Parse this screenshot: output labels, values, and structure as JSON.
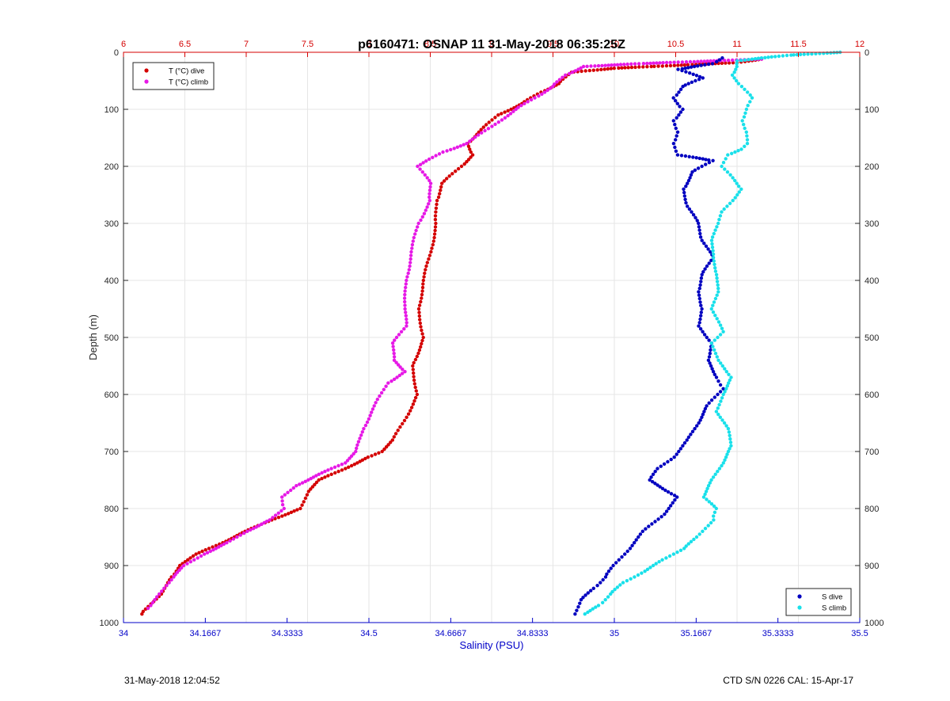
{
  "colors": {
    "temp_axis": "#d40000",
    "sal_axis": "#0000c8",
    "t_dive": "#d40000",
    "t_climb": "#e619e6",
    "s_dive": "#0000c0",
    "s_climb": "#19e0ea",
    "grid": "#e6e6e6"
  },
  "footer": {
    "left": "31-May-2018 12:04:52",
    "right": "CTD S/N 0226  CAL: 15-Apr-17"
  },
  "chart_data": {
    "type": "scatter",
    "title": "p6160471: OSNAP 11 31-May-2018 06:35:25Z",
    "ylabel": "Depth (m)",
    "xlabel_bottom": "Salinity (PSU)",
    "xlabel_top": "",
    "grid": true,
    "y_reversed": true,
    "ylim": [
      0,
      1000
    ],
    "y_ticks": [
      "0",
      "100",
      "200",
      "300",
      "400",
      "500",
      "600",
      "700",
      "800",
      "900",
      "1000"
    ],
    "temp_axis": {
      "xlim": [
        6,
        12
      ],
      "ticks": [
        "6",
        "6.5",
        "7",
        "7.5",
        "8",
        "8.5",
        "9",
        "9.5",
        "10",
        "10.5",
        "11",
        "11.5",
        "12"
      ]
    },
    "salinity_axis": {
      "xlim": [
        34,
        35.5
      ],
      "ticks": [
        "34",
        "34.1667",
        "34.3333",
        "34.5",
        "34.6667",
        "34.8333",
        "35",
        "35.1667",
        "35.3333",
        "35.5"
      ]
    },
    "legend_top_left": [
      {
        "name": "T (°C) dive",
        "color_key": "t_dive"
      },
      {
        "name": "T (°C) climb",
        "color_key": "t_climb"
      }
    ],
    "legend_bottom_right": [
      {
        "name": "S dive",
        "color_key": "s_dive"
      },
      {
        "name": "S climb",
        "color_key": "s_climb"
      }
    ],
    "series": [
      {
        "name": "T (°C) dive",
        "axis": "temp",
        "color_key": "t_dive",
        "points": [
          [
            11.2,
            12
          ],
          [
            11.0,
            18
          ],
          [
            10.6,
            22
          ],
          [
            10.3,
            25
          ],
          [
            10.0,
            28
          ],
          [
            9.65,
            35
          ],
          [
            9.55,
            55
          ],
          [
            9.4,
            70
          ],
          [
            9.25,
            90
          ],
          [
            9.05,
            110
          ],
          [
            8.9,
            140
          ],
          [
            8.8,
            160
          ],
          [
            8.85,
            180
          ],
          [
            8.75,
            200
          ],
          [
            8.6,
            230
          ],
          [
            8.55,
            260
          ],
          [
            8.55,
            300
          ],
          [
            8.5,
            350
          ],
          [
            8.45,
            400
          ],
          [
            8.4,
            450
          ],
          [
            8.45,
            500
          ],
          [
            8.35,
            550
          ],
          [
            8.4,
            600
          ],
          [
            8.3,
            640
          ],
          [
            8.2,
            680
          ],
          [
            8.1,
            700
          ],
          [
            8.0,
            710
          ],
          [
            7.8,
            730
          ],
          [
            7.6,
            750
          ],
          [
            7.5,
            770
          ],
          [
            7.45,
            800
          ],
          [
            7.2,
            820
          ],
          [
            7.0,
            840
          ],
          [
            6.8,
            860
          ],
          [
            6.6,
            880
          ],
          [
            6.45,
            900
          ],
          [
            6.4,
            920
          ],
          [
            6.3,
            950
          ],
          [
            6.15,
            985
          ]
        ]
      },
      {
        "name": "T (°C) climb",
        "axis": "temp",
        "color_key": "t_climb",
        "points": [
          [
            11.2,
            12
          ],
          [
            10.2,
            20
          ],
          [
            9.75,
            25
          ],
          [
            9.6,
            40
          ],
          [
            9.5,
            60
          ],
          [
            9.35,
            80
          ],
          [
            9.2,
            100
          ],
          [
            9.0,
            130
          ],
          [
            8.8,
            160
          ],
          [
            8.6,
            175
          ],
          [
            8.4,
            200
          ],
          [
            8.5,
            230
          ],
          [
            8.5,
            260
          ],
          [
            8.4,
            300
          ],
          [
            8.35,
            350
          ],
          [
            8.3,
            400
          ],
          [
            8.3,
            450
          ],
          [
            8.3,
            480
          ],
          [
            8.2,
            510
          ],
          [
            8.2,
            540
          ],
          [
            8.3,
            560
          ],
          [
            8.15,
            580
          ],
          [
            8.05,
            620
          ],
          [
            7.95,
            660
          ],
          [
            7.9,
            700
          ],
          [
            7.8,
            720
          ],
          [
            7.6,
            740
          ],
          [
            7.4,
            760
          ],
          [
            7.3,
            780
          ],
          [
            7.3,
            800
          ],
          [
            7.2,
            820
          ],
          [
            7.0,
            840
          ],
          [
            6.85,
            860
          ],
          [
            6.65,
            880
          ],
          [
            6.5,
            900
          ],
          [
            6.4,
            920
          ],
          [
            6.3,
            950
          ],
          [
            6.2,
            975
          ]
        ]
      },
      {
        "name": "S dive",
        "axis": "sal",
        "color_key": "s_dive",
        "points": [
          [
            35.22,
            10
          ],
          [
            35.2,
            20
          ],
          [
            35.13,
            30
          ],
          [
            35.18,
            45
          ],
          [
            35.14,
            60
          ],
          [
            35.12,
            80
          ],
          [
            35.14,
            100
          ],
          [
            35.12,
            120
          ],
          [
            35.13,
            140
          ],
          [
            35.12,
            160
          ],
          [
            35.13,
            180
          ],
          [
            35.2,
            190
          ],
          [
            35.16,
            210
          ],
          [
            35.14,
            240
          ],
          [
            35.15,
            270
          ],
          [
            35.17,
            300
          ],
          [
            35.18,
            330
          ],
          [
            35.2,
            360
          ],
          [
            35.18,
            390
          ],
          [
            35.17,
            420
          ],
          [
            35.18,
            450
          ],
          [
            35.17,
            480
          ],
          [
            35.2,
            510
          ],
          [
            35.19,
            540
          ],
          [
            35.21,
            570
          ],
          [
            35.22,
            590
          ],
          [
            35.19,
            620
          ],
          [
            35.17,
            650
          ],
          [
            35.15,
            680
          ],
          [
            35.12,
            710
          ],
          [
            35.09,
            730
          ],
          [
            35.07,
            750
          ],
          [
            35.13,
            780
          ],
          [
            35.1,
            810
          ],
          [
            35.06,
            840
          ],
          [
            35.03,
            870
          ],
          [
            35.0,
            900
          ],
          [
            34.98,
            920
          ],
          [
            34.96,
            940
          ],
          [
            34.93,
            960
          ],
          [
            34.92,
            985
          ]
        ]
      },
      {
        "name": "S climb",
        "axis": "sal",
        "color_key": "s_climb",
        "points": [
          [
            35.46,
            0
          ],
          [
            35.36,
            5
          ],
          [
            35.3,
            10
          ],
          [
            35.25,
            15
          ],
          [
            35.25,
            25
          ],
          [
            35.24,
            40
          ],
          [
            35.26,
            60
          ],
          [
            35.28,
            80
          ],
          [
            35.27,
            100
          ],
          [
            35.26,
            120
          ],
          [
            35.27,
            140
          ],
          [
            35.27,
            160
          ],
          [
            35.26,
            170
          ],
          [
            35.23,
            180
          ],
          [
            35.22,
            200
          ],
          [
            35.24,
            220
          ],
          [
            35.26,
            240
          ],
          [
            35.24,
            260
          ],
          [
            35.22,
            280
          ],
          [
            35.21,
            300
          ],
          [
            35.2,
            330
          ],
          [
            35.2,
            360
          ],
          [
            35.21,
            390
          ],
          [
            35.21,
            420
          ],
          [
            35.2,
            450
          ],
          [
            35.22,
            490
          ],
          [
            35.2,
            510
          ],
          [
            35.21,
            540
          ],
          [
            35.24,
            570
          ],
          [
            35.22,
            600
          ],
          [
            35.21,
            630
          ],
          [
            35.23,
            660
          ],
          [
            35.24,
            690
          ],
          [
            35.22,
            720
          ],
          [
            35.2,
            750
          ],
          [
            35.18,
            780
          ],
          [
            35.21,
            800
          ],
          [
            35.2,
            820
          ],
          [
            35.17,
            850
          ],
          [
            35.14,
            870
          ],
          [
            35.1,
            890
          ],
          [
            35.06,
            910
          ],
          [
            35.02,
            930
          ],
          [
            34.99,
            950
          ],
          [
            34.97,
            970
          ],
          [
            34.94,
            985
          ]
        ]
      }
    ]
  }
}
